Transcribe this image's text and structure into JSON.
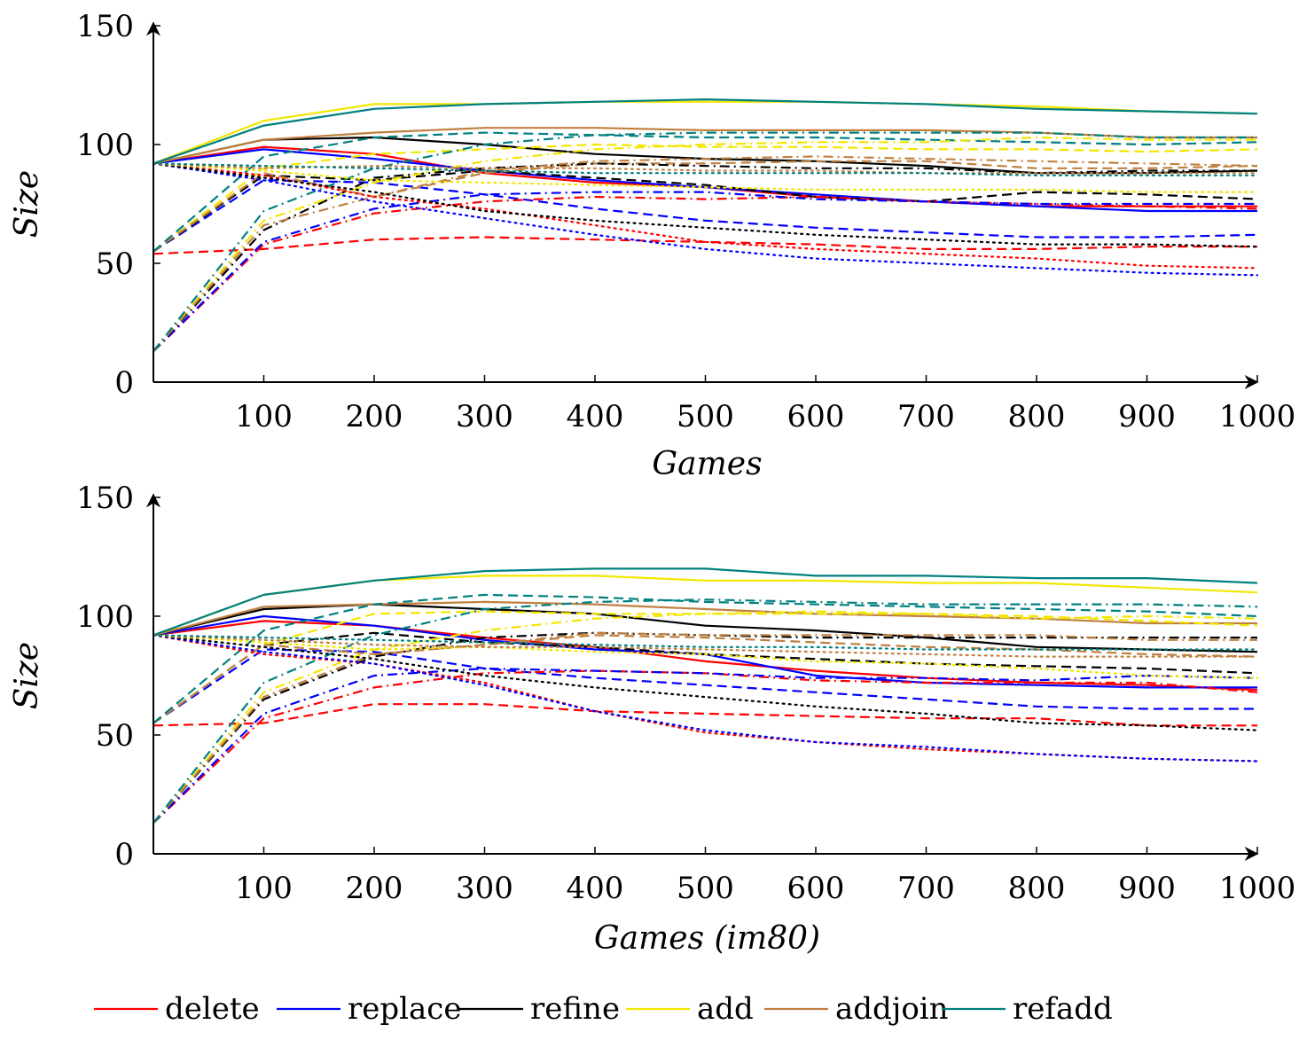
{
  "colors": {
    "delete": "#ff0000",
    "replace": "#0000ff",
    "refine": "#000000",
    "add": "#f2e600",
    "addjoin": "#bf8040",
    "refadd": "#008080"
  },
  "legend": {
    "placement": "bottom",
    "entries": [
      {
        "label": "delete",
        "color": "#ff0000"
      },
      {
        "label": "replace",
        "color": "#0000ff"
      },
      {
        "label": "refine",
        "color": "#000000"
      },
      {
        "label": "add",
        "color": "#f2e600"
      },
      {
        "label": "addjoin",
        "color": "#bf8040"
      },
      {
        "label": "refadd",
        "color": "#008080"
      }
    ]
  },
  "chart_data": [
    {
      "type": "line",
      "xlabel": "Games",
      "ylabel": "Size",
      "xlim": [
        0,
        1000
      ],
      "ylim": [
        0,
        150
      ],
      "xticks": [
        100,
        200,
        300,
        400,
        500,
        600,
        700,
        800,
        900,
        1000
      ],
      "yticks": [
        0,
        50,
        100,
        150
      ],
      "x": [
        0,
        100,
        200,
        300,
        400,
        500,
        600,
        700,
        800,
        900,
        1000
      ],
      "grid": false,
      "series": [
        {
          "name": "delete",
          "style": "solid",
          "color": "#ff0000",
          "values": [
            92,
            99,
            96,
            88,
            84,
            82,
            78,
            76,
            74,
            74,
            74
          ]
        },
        {
          "name": "replace",
          "style": "solid",
          "color": "#0000ff",
          "values": [
            92,
            98,
            94,
            89,
            85,
            82,
            79,
            76,
            74,
            72,
            72
          ]
        },
        {
          "name": "refine",
          "style": "solid",
          "color": "#000000",
          "values": [
            92,
            102,
            103,
            100,
            96,
            94,
            93,
            91,
            88,
            88,
            89
          ]
        },
        {
          "name": "add",
          "style": "solid",
          "color": "#f2e600",
          "values": [
            92,
            110,
            117,
            117,
            118,
            118,
            118,
            117,
            116,
            114,
            113
          ]
        },
        {
          "name": "addjoin",
          "style": "solid",
          "color": "#bf8040",
          "values": [
            92,
            102,
            105,
            107,
            107,
            106,
            106,
            106,
            105,
            103,
            103
          ]
        },
        {
          "name": "refadd",
          "style": "solid",
          "color": "#008080",
          "values": [
            92,
            108,
            115,
            117,
            118,
            119,
            118,
            117,
            115,
            114,
            113
          ]
        },
        {
          "style": "dashed",
          "color": "#ff0000",
          "values": [
            54,
            56,
            60,
            61,
            60,
            59,
            58,
            56,
            56,
            57,
            57
          ]
        },
        {
          "style": "dashed",
          "color": "#0000ff",
          "values": [
            55,
            85,
            84,
            79,
            73,
            68,
            65,
            63,
            61,
            61,
            62
          ]
        },
        {
          "style": "dashed",
          "color": "#000000",
          "values": [
            55,
            87,
            85,
            89,
            86,
            83,
            78,
            76,
            80,
            79,
            77
          ]
        },
        {
          "style": "dashed",
          "color": "#f2e600",
          "values": [
            55,
            90,
            96,
            98,
            100,
            99,
            99,
            98,
            98,
            97,
            98
          ]
        },
        {
          "style": "dashed",
          "color": "#bf8040",
          "values": [
            55,
            88,
            78,
            88,
            92,
            92,
            93,
            93,
            90,
            90,
            91
          ]
        },
        {
          "style": "dashed",
          "color": "#008080",
          "values": [
            55,
            95,
            103,
            105,
            104,
            103,
            103,
            102,
            101,
            100,
            101
          ]
        },
        {
          "style": "dashdot",
          "color": "#ff0000",
          "values": [
            13,
            58,
            71,
            76,
            78,
            77,
            78,
            76,
            75,
            74,
            73
          ]
        },
        {
          "style": "dashdot",
          "color": "#0000ff",
          "values": [
            13,
            59,
            73,
            79,
            80,
            80,
            77,
            76,
            75,
            75,
            75
          ]
        },
        {
          "style": "dashdot",
          "color": "#000000",
          "values": [
            13,
            64,
            86,
            90,
            92,
            91,
            90,
            90,
            88,
            89,
            89
          ]
        },
        {
          "style": "dashdot",
          "color": "#f2e600",
          "values": [
            13,
            68,
            84,
            93,
            98,
            100,
            101,
            101,
            103,
            102,
            102
          ]
        },
        {
          "style": "dashdot",
          "color": "#bf8040",
          "values": [
            13,
            66,
            78,
            89,
            93,
            94,
            95,
            94,
            93,
            92,
            91
          ]
        },
        {
          "style": "dashdot",
          "color": "#008080",
          "values": [
            13,
            72,
            90,
            100,
            104,
            105,
            105,
            105,
            105,
            103,
            103
          ]
        },
        {
          "style": "dotted",
          "color": "#ff0000",
          "values": [
            92,
            87,
            78,
            73,
            66,
            59,
            56,
            54,
            52,
            49,
            48
          ]
        },
        {
          "style": "dotted",
          "color": "#0000ff",
          "values": [
            92,
            85,
            76,
            69,
            62,
            56,
            52,
            50,
            48,
            46,
            45
          ]
        },
        {
          "style": "dotted",
          "color": "#000000",
          "values": [
            92,
            86,
            80,
            72,
            68,
            65,
            62,
            60,
            58,
            58,
            57
          ]
        },
        {
          "style": "dotted",
          "color": "#f2e600",
          "values": [
            92,
            89,
            85,
            84,
            83,
            82,
            81,
            81,
            81,
            80,
            80
          ]
        },
        {
          "style": "dotted",
          "color": "#bf8040",
          "values": [
            92,
            90,
            91,
            90,
            90,
            89,
            89,
            88,
            88,
            88,
            88
          ]
        },
        {
          "style": "dotted",
          "color": "#008080",
          "values": [
            92,
            91,
            90,
            89,
            88,
            88,
            88,
            88,
            87,
            87,
            87
          ]
        }
      ]
    },
    {
      "type": "line",
      "xlabel": "Games (im80)",
      "ylabel": "Size",
      "xlim": [
        0,
        1000
      ],
      "ylim": [
        0,
        150
      ],
      "xticks": [
        100,
        200,
        300,
        400,
        500,
        600,
        700,
        800,
        900,
        1000
      ],
      "yticks": [
        0,
        50,
        100,
        150
      ],
      "x": [
        0,
        100,
        200,
        300,
        400,
        500,
        600,
        700,
        800,
        900,
        1000
      ],
      "grid": false,
      "series": [
        {
          "name": "delete",
          "style": "solid",
          "color": "#ff0000",
          "values": [
            92,
            98,
            96,
            91,
            87,
            81,
            77,
            74,
            72,
            71,
            69
          ]
        },
        {
          "name": "replace",
          "style": "solid",
          "color": "#0000ff",
          "values": [
            92,
            100,
            96,
            90,
            86,
            84,
            75,
            72,
            71,
            70,
            70
          ]
        },
        {
          "name": "refine",
          "style": "solid",
          "color": "#000000",
          "values": [
            92,
            103,
            105,
            103,
            101,
            96,
            94,
            91,
            87,
            86,
            85
          ]
        },
        {
          "name": "add",
          "style": "solid",
          "color": "#f2e600",
          "values": [
            92,
            109,
            115,
            117,
            117,
            115,
            115,
            114,
            114,
            112,
            110
          ]
        },
        {
          "name": "addjoin",
          "style": "solid",
          "color": "#bf8040",
          "values": [
            92,
            104,
            105,
            106,
            105,
            103,
            101,
            100,
            99,
            97,
            97
          ]
        },
        {
          "name": "refadd",
          "style": "solid",
          "color": "#008080",
          "values": [
            92,
            109,
            115,
            119,
            120,
            120,
            117,
            117,
            116,
            116,
            114
          ]
        },
        {
          "style": "dashed",
          "color": "#ff0000",
          "values": [
            54,
            55,
            63,
            63,
            60,
            59,
            58,
            57,
            57,
            54,
            54
          ]
        },
        {
          "style": "dashed",
          "color": "#0000ff",
          "values": [
            55,
            86,
            85,
            78,
            74,
            71,
            68,
            65,
            62,
            61,
            61
          ]
        },
        {
          "style": "dashed",
          "color": "#000000",
          "values": [
            55,
            88,
            93,
            89,
            87,
            84,
            82,
            80,
            79,
            78,
            76
          ]
        },
        {
          "style": "dashed",
          "color": "#f2e600",
          "values": [
            55,
            88,
            101,
            102,
            101,
            101,
            101,
            101,
            100,
            98,
            96
          ]
        },
        {
          "style": "dashed",
          "color": "#bf8040",
          "values": [
            55,
            88,
            84,
            88,
            92,
            91,
            89,
            87,
            86,
            84,
            83
          ]
        },
        {
          "style": "dashed",
          "color": "#008080",
          "values": [
            55,
            94,
            105,
            109,
            108,
            106,
            105,
            104,
            103,
            102,
            100
          ]
        },
        {
          "style": "dashdot",
          "color": "#ff0000",
          "values": [
            13,
            57,
            70,
            76,
            77,
            76,
            73,
            72,
            72,
            72,
            68
          ]
        },
        {
          "style": "dashdot",
          "color": "#0000ff",
          "values": [
            13,
            59,
            75,
            78,
            77,
            76,
            74,
            74,
            73,
            75,
            74
          ]
        },
        {
          "style": "dashdot",
          "color": "#000000",
          "values": [
            13,
            65,
            83,
            91,
            93,
            92,
            91,
            91,
            91,
            91,
            91
          ]
        },
        {
          "style": "dashdot",
          "color": "#f2e600",
          "values": [
            13,
            68,
            86,
            94,
            99,
            101,
            102,
            101,
            99,
            100,
            99
          ]
        },
        {
          "style": "dashdot",
          "color": "#bf8040",
          "values": [
            13,
            66,
            84,
            88,
            93,
            92,
            92,
            92,
            92,
            90,
            90
          ]
        },
        {
          "style": "dashdot",
          "color": "#008080",
          "values": [
            13,
            72,
            92,
            103,
            106,
            107,
            106,
            105,
            105,
            105,
            104
          ]
        },
        {
          "style": "dotted",
          "color": "#ff0000",
          "values": [
            92,
            84,
            80,
            72,
            60,
            51,
            47,
            44,
            42,
            40,
            39
          ]
        },
        {
          "style": "dotted",
          "color": "#0000ff",
          "values": [
            92,
            85,
            80,
            71,
            60,
            52,
            47,
            45,
            42,
            40,
            39
          ]
        },
        {
          "style": "dotted",
          "color": "#000000",
          "values": [
            92,
            87,
            82,
            75,
            70,
            66,
            62,
            59,
            55,
            54,
            52
          ]
        },
        {
          "style": "dotted",
          "color": "#f2e600",
          "values": [
            92,
            89,
            86,
            87,
            85,
            84,
            81,
            80,
            78,
            75,
            74
          ]
        },
        {
          "style": "dotted",
          "color": "#bf8040",
          "values": [
            92,
            90,
            88,
            87,
            87,
            86,
            85,
            84,
            83,
            83,
            83
          ]
        },
        {
          "style": "dotted",
          "color": "#008080",
          "values": [
            92,
            91,
            90,
            89,
            88,
            87,
            87,
            86,
            86,
            86,
            86
          ]
        }
      ]
    }
  ]
}
